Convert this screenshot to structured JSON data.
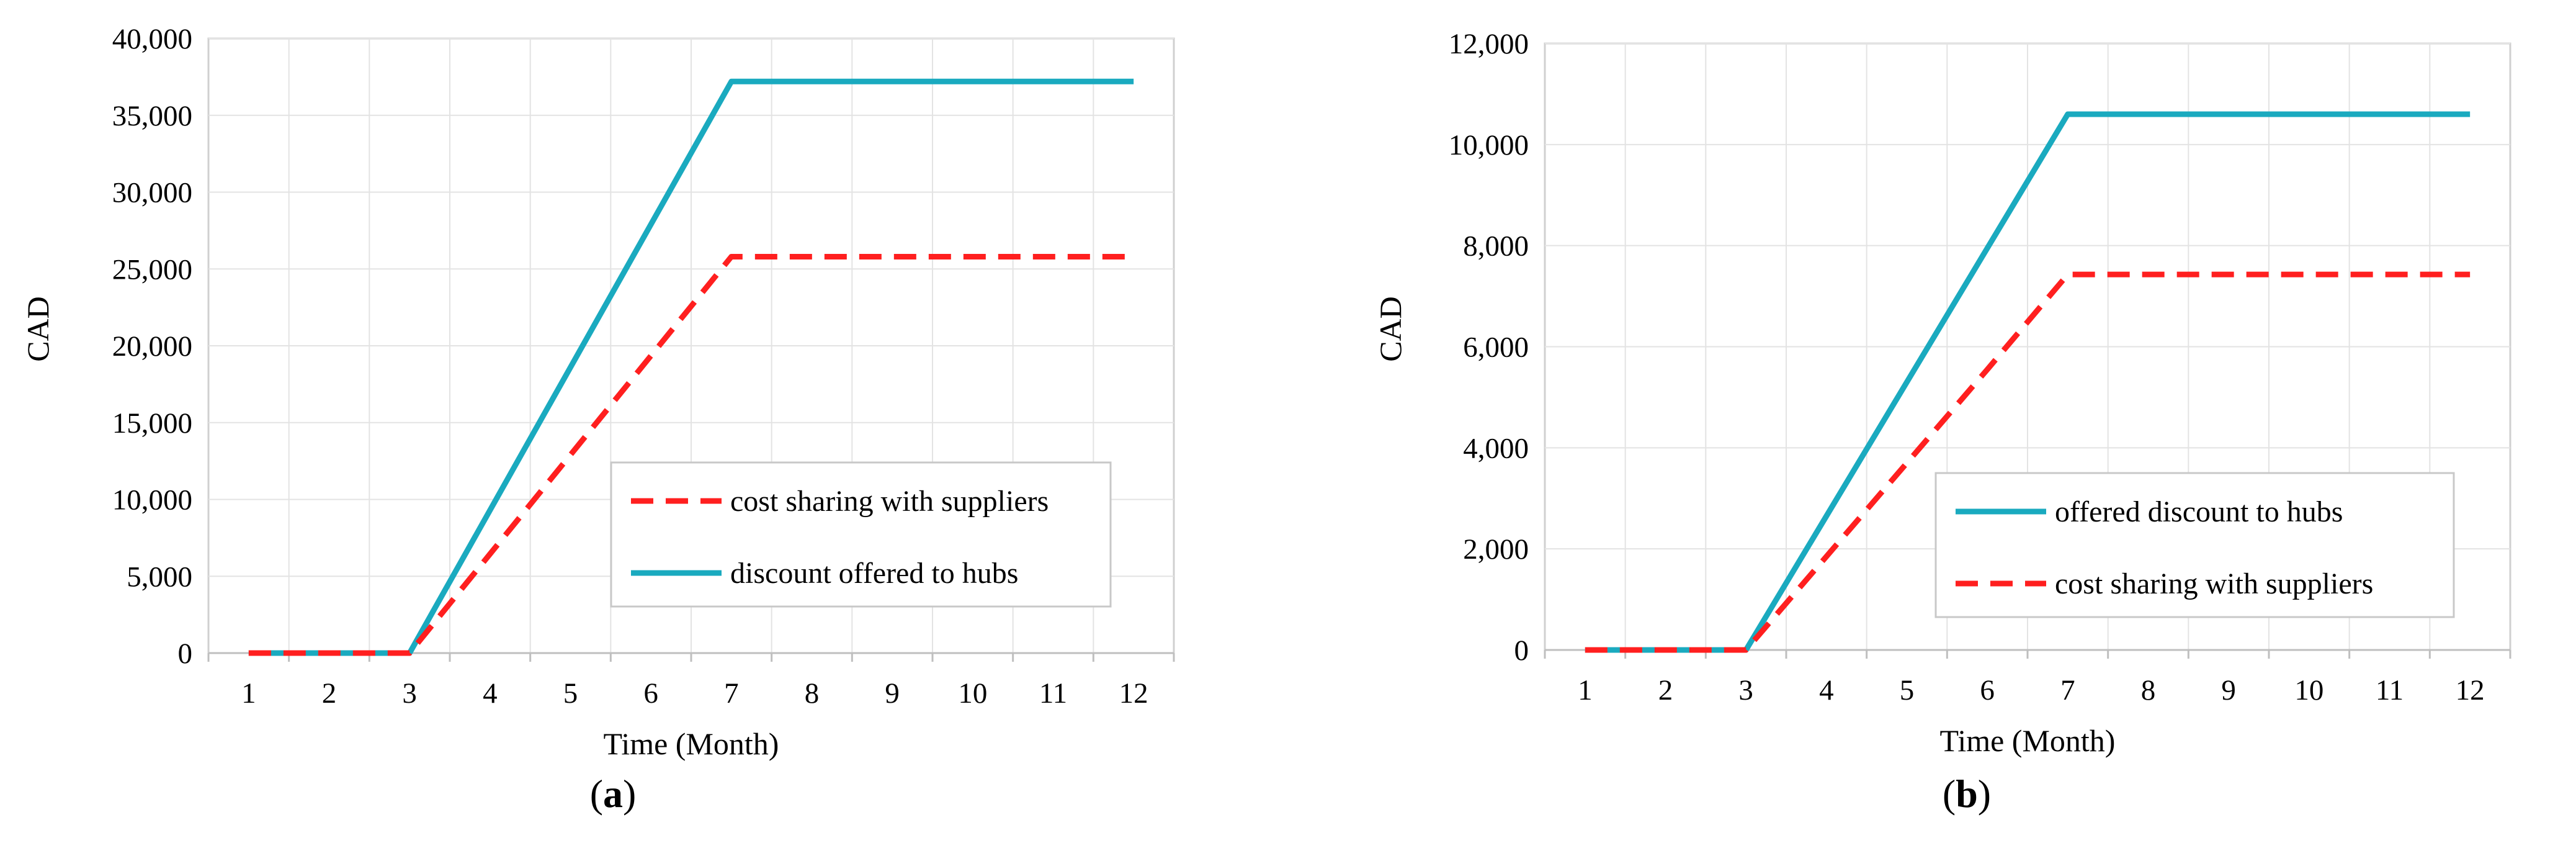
{
  "chart_data": [
    {
      "type": "line",
      "caption": "(a)",
      "xlabel": "Time (Month)",
      "ylabel": "CAD",
      "x": [
        1,
        2,
        3,
        4,
        5,
        6,
        7,
        8,
        9,
        10,
        11,
        12
      ],
      "xlim": [
        0.5,
        12.5
      ],
      "ylim": [
        0,
        40000
      ],
      "yticks": [
        0,
        5000,
        10000,
        15000,
        20000,
        25000,
        30000,
        35000,
        40000
      ],
      "ytick_labels": [
        "0",
        "5,000",
        "10,000",
        "15,000",
        "20,000",
        "25,000",
        "30,000",
        "35,000",
        "40,000"
      ],
      "grid": true,
      "legend_position": "lower-right",
      "legend_order": [
        1,
        0
      ],
      "series": [
        {
          "name": "discount offered to hubs",
          "color": "#1aaabf",
          "style": "solid",
          "values": [
            0,
            0,
            0,
            9300,
            18600,
            27900,
            37200,
            37200,
            37200,
            37200,
            37200,
            37200
          ]
        },
        {
          "name": "cost sharing with suppliers",
          "color": "#ff1f1f",
          "style": "dashed",
          "values": [
            0,
            0,
            0,
            6450,
            12900,
            19350,
            25800,
            25800,
            25800,
            25800,
            25800,
            25800
          ]
        }
      ]
    },
    {
      "type": "line",
      "caption": "(b)",
      "xlabel": "Time (Month)",
      "ylabel": "CAD",
      "x": [
        1,
        2,
        3,
        4,
        5,
        6,
        7,
        8,
        9,
        10,
        11,
        12
      ],
      "xlim": [
        0.5,
        12.5
      ],
      "ylim": [
        0,
        12000
      ],
      "yticks": [
        0,
        2000,
        4000,
        6000,
        8000,
        10000,
        12000
      ],
      "ytick_labels": [
        "0",
        "2,000",
        "4,000",
        "6,000",
        "8,000",
        "10,000",
        "12,000"
      ],
      "grid": true,
      "legend_position": "lower-right",
      "legend_order": [
        0,
        1
      ],
      "series": [
        {
          "name": "offered discount to hubs",
          "color": "#1aaabf",
          "style": "solid",
          "values": [
            0,
            0,
            0,
            2650,
            5300,
            7950,
            10600,
            10600,
            10600,
            10600,
            10600,
            10600
          ]
        },
        {
          "name": "cost sharing with suppliers",
          "color": "#ff1f1f",
          "style": "dashed",
          "values": [
            0,
            0,
            0,
            1850,
            3700,
            5550,
            7430,
            7430,
            7430,
            7430,
            7430,
            7430
          ]
        }
      ]
    }
  ]
}
